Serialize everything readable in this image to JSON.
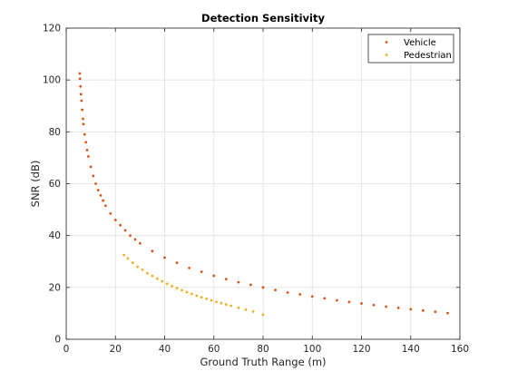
{
  "chart_data": {
    "type": "scatter",
    "title": "Detection Sensitivity",
    "xlabel": "Ground Truth Range (m)",
    "ylabel": "SNR (dB)",
    "xlim": [
      0,
      160
    ],
    "ylim": [
      0,
      120
    ],
    "xticks": [
      0,
      20,
      40,
      60,
      80,
      100,
      120,
      140,
      160
    ],
    "yticks": [
      0,
      20,
      40,
      60,
      80,
      100,
      120
    ],
    "grid": true,
    "legend_position": "top-right",
    "series": [
      {
        "name": "Vehicle",
        "color": "#D95319",
        "x": [
          5.5,
          5.6,
          5.8,
          6.0,
          6.2,
          6.5,
          6.8,
          7.0,
          7.5,
          8.0,
          8.5,
          9,
          10,
          11,
          12,
          13,
          14,
          15,
          16,
          18,
          20,
          22,
          24,
          26,
          28,
          30,
          35,
          40,
          45,
          50,
          55,
          60,
          65,
          70,
          75,
          80,
          85,
          90,
          95,
          100,
          105,
          110,
          115,
          120,
          125,
          130,
          135,
          140,
          145,
          150,
          155
        ],
        "y": [
          102.5,
          100.5,
          97.5,
          94.5,
          92,
          88.5,
          85,
          83,
          79,
          76,
          73,
          70.5,
          66.5,
          63,
          60,
          57.5,
          55.5,
          53.5,
          51.5,
          48.5,
          46,
          44,
          42,
          40,
          38.5,
          37,
          34,
          31.5,
          29.5,
          27.5,
          26,
          24.5,
          23.2,
          22,
          21,
          20,
          19,
          18,
          17.3,
          16.5,
          15.8,
          15,
          14.4,
          13.8,
          13.2,
          12.6,
          12.1,
          11.6,
          11.1,
          10.6,
          10.1
        ]
      },
      {
        "name": "Pedestrian",
        "color": "#EDB120",
        "x": [
          23.5,
          25,
          27,
          29,
          31,
          33,
          35,
          37,
          39,
          41,
          43,
          45,
          47,
          49,
          51,
          53,
          55,
          57,
          59,
          61,
          63,
          65,
          67,
          70,
          73,
          76,
          80
        ],
        "y": [
          32.5,
          31.2,
          29.5,
          28,
          26.8,
          25.5,
          24.4,
          23.4,
          22.4,
          21.4,
          20.5,
          19.7,
          18.9,
          18.2,
          17.5,
          16.8,
          16.2,
          15.6,
          15,
          14.4,
          13.9,
          13.4,
          12.9,
          12.1,
          11.4,
          10.7,
          9.5
        ]
      }
    ]
  }
}
